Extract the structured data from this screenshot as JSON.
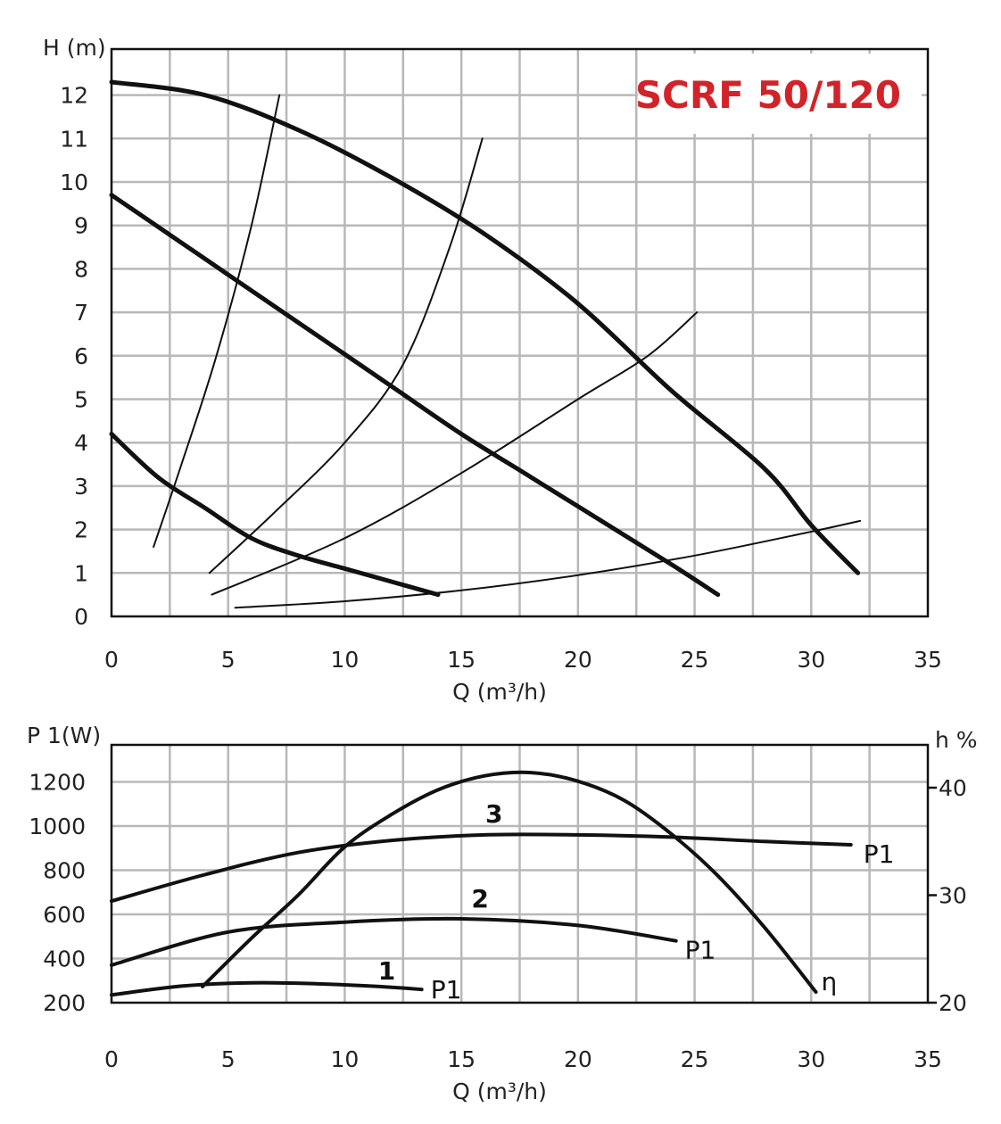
{
  "colors": {
    "title": "#d2232a",
    "curve": "#111111",
    "grid": "#b8b8b8"
  },
  "chart_data": [
    {
      "type": "line",
      "title": "SCRF 50/120",
      "xlabel": "Q (m³/h)",
      "ylabel": "H (m)",
      "xlim": [
        0,
        35
      ],
      "ylim": [
        0,
        13
      ],
      "x_ticks": [
        "0",
        "5",
        "10",
        "15",
        "20",
        "25",
        "30",
        "35"
      ],
      "y_ticks": [
        "0",
        "1",
        "2",
        "3",
        "4",
        "5",
        "6",
        "7",
        "8",
        "9",
        "10",
        "11",
        "12"
      ],
      "grid": true,
      "series": [
        {
          "style": "thick",
          "x": [
            0,
            2,
            4,
            6,
            8,
            10,
            12,
            14
          ],
          "y": [
            4.2,
            3.2,
            2.5,
            1.8,
            1.4,
            1.1,
            0.8,
            0.5
          ]
        },
        {
          "style": "thick",
          "x": [
            0,
            3,
            6,
            9,
            12,
            15,
            18,
            21,
            24,
            26
          ],
          "y": [
            9.7,
            8.6,
            7.5,
            6.4,
            5.3,
            4.2,
            3.2,
            2.2,
            1.2,
            0.5
          ]
        },
        {
          "style": "thick",
          "x": [
            0,
            4,
            8,
            12,
            16,
            20,
            24,
            28,
            30,
            32
          ],
          "y": [
            12.3,
            12,
            11.2,
            10.1,
            8.8,
            7.2,
            5.2,
            3.4,
            2.1,
            1
          ]
        },
        {
          "style": "thin",
          "x": [
            1.8,
            3,
            4.5,
            6,
            7.2
          ],
          "y": [
            1.6,
            3.5,
            6,
            9,
            12
          ]
        },
        {
          "style": "thin",
          "x": [
            4.2,
            7,
            10,
            12.5,
            14.5,
            15.9
          ],
          "y": [
            1,
            2.4,
            4,
            5.8,
            8.5,
            11
          ]
        },
        {
          "style": "thin",
          "x": [
            4.3,
            10,
            15,
            20,
            23,
            25.1
          ],
          "y": [
            0.5,
            1.8,
            3.3,
            5,
            6,
            7
          ]
        },
        {
          "style": "thin",
          "x": [
            5.3,
            10,
            15,
            20,
            25,
            30,
            32.1
          ],
          "y": [
            0.2,
            0.35,
            0.6,
            0.95,
            1.4,
            1.95,
            2.2
          ]
        }
      ]
    },
    {
      "type": "line",
      "xlabel": "Q (m³/h)",
      "ylabel": "P 1(W)",
      "y2label": "h %",
      "xlim": [
        0,
        35
      ],
      "ylim": [
        200,
        1400
      ],
      "y2lim": [
        20,
        42
      ],
      "x_ticks": [
        "0",
        "5",
        "10",
        "15",
        "20",
        "25",
        "30",
        "35"
      ],
      "y_ticks": [
        "200",
        "400",
        "600",
        "800",
        "1000",
        "1200"
      ],
      "y2_ticks": [
        "20",
        "30",
        "40"
      ],
      "grid": true,
      "series": [
        {
          "name": "1",
          "end_label": "P1",
          "x": [
            0,
            3,
            6,
            9,
            12,
            13.3
          ],
          "y": [
            235,
            275,
            290,
            285,
            270,
            260
          ]
        },
        {
          "name": "2",
          "end_label": "P1",
          "x": [
            0,
            5,
            10,
            15,
            20,
            24.2
          ],
          "y": [
            370,
            520,
            565,
            580,
            550,
            480
          ]
        },
        {
          "name": "3",
          "end_label": "P1",
          "x": [
            0,
            4,
            8,
            12,
            16,
            20,
            24,
            28,
            31.7
          ],
          "y": [
            660,
            780,
            880,
            935,
            960,
            960,
            950,
            930,
            915
          ]
        },
        {
          "name": "η",
          "axis": "right",
          "x": [
            3.9,
            6,
            8,
            10,
            12,
            14,
            16,
            18,
            20,
            22,
            24,
            26,
            28,
            30.2
          ],
          "y": [
            21.5,
            26,
            30,
            34.5,
            37.5,
            39.8,
            41.1,
            41.4,
            40.6,
            38.8,
            35.7,
            31.8,
            27,
            21
          ]
        }
      ]
    }
  ]
}
